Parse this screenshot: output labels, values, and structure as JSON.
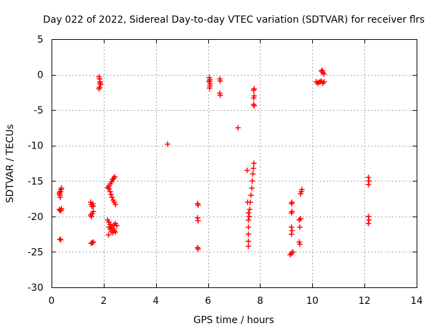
{
  "chart_data": {
    "type": "scatter",
    "title": "Day 022 of 2022, Sidereal Day-to-day VTEC variation (SDTVAR) for receiver flrs",
    "xlabel": "GPS time / hours",
    "ylabel": "SDTVAR / TECUs",
    "xlim": [
      0,
      14
    ],
    "ylim": [
      -30,
      5
    ],
    "xticks": [
      0,
      2,
      4,
      6,
      8,
      10,
      12,
      14
    ],
    "yticks": [
      5,
      0,
      -5,
      -10,
      -15,
      -20,
      -25,
      -30
    ],
    "grid": true,
    "marker": "+",
    "color": "#ff0000",
    "series": [
      {
        "name": "SDTVAR",
        "points": [
          [
            0.3,
            -16.8
          ],
          [
            0.32,
            -17.0
          ],
          [
            0.34,
            -16.5
          ],
          [
            0.36,
            -16.2
          ],
          [
            0.38,
            -16.0
          ],
          [
            0.33,
            -17.3
          ],
          [
            0.31,
            -16.6
          ],
          [
            0.3,
            -19.0
          ],
          [
            0.33,
            -19.2
          ],
          [
            0.36,
            -19.1
          ],
          [
            0.38,
            -18.9
          ],
          [
            0.32,
            -23.2
          ],
          [
            0.35,
            -23.3
          ],
          [
            1.5,
            -18.0
          ],
          [
            1.52,
            -18.3
          ],
          [
            1.55,
            -18.6
          ],
          [
            1.58,
            -18.2
          ],
          [
            1.6,
            -18.5
          ],
          [
            1.5,
            -19.8
          ],
          [
            1.53,
            -20.0
          ],
          [
            1.56,
            -19.6
          ],
          [
            1.6,
            -19.3
          ],
          [
            1.52,
            -23.8
          ],
          [
            1.56,
            -23.7
          ],
          [
            1.6,
            -23.6
          ],
          [
            1.82,
            -0.3
          ],
          [
            1.84,
            -0.6
          ],
          [
            1.86,
            -1.0
          ],
          [
            1.88,
            -1.4
          ],
          [
            1.84,
            -1.8
          ],
          [
            1.82,
            -2.0
          ],
          [
            1.86,
            -1.2
          ],
          [
            2.15,
            -15.9
          ],
          [
            2.2,
            -16.1
          ],
          [
            2.25,
            -16.5
          ],
          [
            2.28,
            -16.9
          ],
          [
            2.32,
            -17.3
          ],
          [
            2.36,
            -17.7
          ],
          [
            2.4,
            -18.0
          ],
          [
            2.45,
            -18.3
          ],
          [
            2.2,
            -15.7
          ],
          [
            2.26,
            -15.4
          ],
          [
            2.3,
            -15.1
          ],
          [
            2.34,
            -14.8
          ],
          [
            2.38,
            -14.6
          ],
          [
            2.42,
            -14.4
          ],
          [
            2.15,
            -20.5
          ],
          [
            2.2,
            -20.8
          ],
          [
            2.25,
            -21.1
          ],
          [
            2.3,
            -21.4
          ],
          [
            2.35,
            -21.7
          ],
          [
            2.4,
            -22.0
          ],
          [
            2.45,
            -22.2
          ],
          [
            2.5,
            -21.3
          ],
          [
            2.2,
            -21.5
          ],
          [
            2.25,
            -21.8
          ],
          [
            2.3,
            -22.1
          ],
          [
            2.35,
            -22.3
          ],
          [
            2.18,
            -22.6
          ],
          [
            2.4,
            -21.2
          ],
          [
            2.45,
            -21.0
          ],
          [
            4.45,
            -9.8
          ],
          [
            5.6,
            -18.2
          ],
          [
            5.62,
            -18.4
          ],
          [
            5.6,
            -20.2
          ],
          [
            5.62,
            -20.6
          ],
          [
            5.6,
            -24.4
          ],
          [
            5.62,
            -24.6
          ],
          [
            6.05,
            -0.4
          ],
          [
            6.07,
            -0.7
          ],
          [
            6.05,
            -1.0
          ],
          [
            6.08,
            -1.3
          ],
          [
            6.07,
            -1.6
          ],
          [
            6.06,
            -1.9
          ],
          [
            6.05,
            -0.9
          ],
          [
            6.45,
            -0.6
          ],
          [
            6.47,
            -0.9
          ],
          [
            6.45,
            -2.6
          ],
          [
            6.47,
            -2.9
          ],
          [
            7.15,
            -7.5
          ],
          [
            7.5,
            -13.5
          ],
          [
            7.52,
            -18.0
          ],
          [
            7.55,
            -19.5
          ],
          [
            7.55,
            -20.5
          ],
          [
            7.55,
            -21.5
          ],
          [
            7.55,
            -22.5
          ],
          [
            7.55,
            -23.5
          ],
          [
            7.55,
            -24.2
          ],
          [
            7.58,
            -20.0
          ],
          [
            7.6,
            -19.0
          ],
          [
            7.62,
            -18.0
          ],
          [
            7.65,
            -17.0
          ],
          [
            7.68,
            -16.0
          ],
          [
            7.7,
            -15.0
          ],
          [
            7.72,
            -14.0
          ],
          [
            7.74,
            -13.2
          ],
          [
            7.76,
            -12.5
          ],
          [
            7.75,
            -2.2
          ],
          [
            7.77,
            -2.0
          ],
          [
            7.75,
            -3.3
          ],
          [
            7.77,
            -3.0
          ],
          [
            7.75,
            -4.2
          ],
          [
            7.77,
            -4.4
          ],
          [
            9.2,
            -18.2
          ],
          [
            9.22,
            -18.0
          ],
          [
            9.2,
            -19.5
          ],
          [
            9.22,
            -19.3
          ],
          [
            9.2,
            -21.5
          ],
          [
            9.22,
            -22.0
          ],
          [
            9.2,
            -22.5
          ],
          [
            9.15,
            -25.4
          ],
          [
            9.2,
            -25.2
          ],
          [
            9.25,
            -25.0
          ],
          [
            9.5,
            -20.5
          ],
          [
            9.52,
            -21.5
          ],
          [
            9.55,
            -20.3
          ],
          [
            9.5,
            -23.6
          ],
          [
            9.52,
            -23.9
          ],
          [
            9.55,
            -16.8
          ],
          [
            9.58,
            -16.5
          ],
          [
            9.6,
            -16.2
          ],
          [
            10.15,
            -1.0
          ],
          [
            10.2,
            -1.2
          ],
          [
            10.25,
            -1.1
          ],
          [
            10.3,
            -1.0
          ],
          [
            10.35,
            -0.9
          ],
          [
            10.4,
            -1.2
          ],
          [
            10.45,
            -1.0
          ],
          [
            10.35,
            0.5
          ],
          [
            10.4,
            0.3
          ],
          [
            10.45,
            0.1
          ],
          [
            10.38,
            0.6
          ],
          [
            12.15,
            -14.5
          ],
          [
            12.17,
            -15.0
          ],
          [
            12.15,
            -15.5
          ],
          [
            12.15,
            -20.0
          ],
          [
            12.17,
            -20.5
          ],
          [
            12.15,
            -21.0
          ]
        ]
      }
    ]
  }
}
